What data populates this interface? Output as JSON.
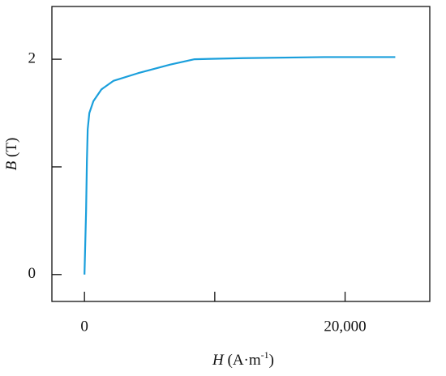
{
  "chart_data": {
    "type": "line",
    "x_label": {
      "symbol": "H",
      "unit": "(A·m",
      "exponent": "-1",
      "close": ")"
    },
    "y_label": {
      "symbol": "B",
      "unit": "(T)"
    },
    "x": [
      0,
      124,
      186,
      248,
      373,
      683,
      1304,
      2236,
      4099,
      6584,
      8447,
      12174,
      18385,
      23851
    ],
    "series": [
      {
        "color": "#1a9fdc",
        "values": [
          0,
          0.59,
          1.05,
          1.35,
          1.5,
          1.61,
          1.72,
          1.8,
          1.87,
          1.95,
          2.0,
          2.01,
          2.02,
          2.02
        ]
      }
    ],
    "xlim": [
      -2500,
      26500
    ],
    "xticks": [
      0,
      {
        "value": 20000,
        "label": "20,000"
      }
    ],
    "xminorticks": [
      10000
    ],
    "ylim": [
      -0.25,
      2.49
    ],
    "yticks": [
      0,
      2
    ],
    "yminorticks": [
      1
    ]
  }
}
